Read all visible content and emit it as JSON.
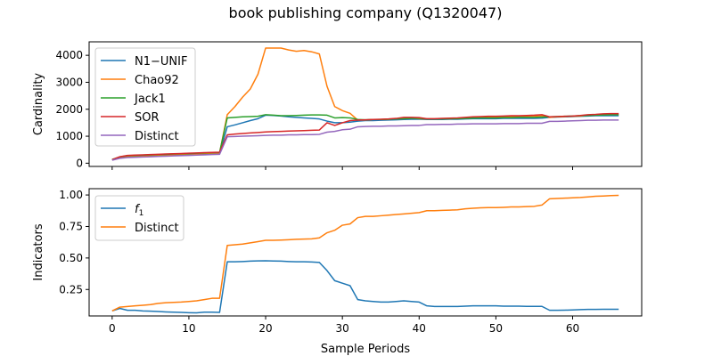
{
  "title": "book publishing company (Q1320047)",
  "chart_data": [
    {
      "type": "line",
      "panel": "top",
      "xlabel": "",
      "ylabel": "Cardinality",
      "xlim": [
        -3,
        69
      ],
      "ylim": [
        -120,
        4500
      ],
      "xticks": [
        0,
        10,
        20,
        30,
        40,
        50,
        60
      ],
      "yticks": [
        0,
        1000,
        2000,
        3000,
        4000
      ],
      "ytick_labels": [
        "0",
        "1000",
        "2000",
        "3000",
        "4000"
      ],
      "legend": "top-left",
      "x": [
        0,
        1,
        2,
        3,
        4,
        5,
        6,
        7,
        8,
        9,
        10,
        11,
        12,
        13,
        14,
        15,
        16,
        17,
        18,
        19,
        20,
        21,
        22,
        23,
        24,
        25,
        26,
        27,
        28,
        29,
        30,
        31,
        32,
        33,
        34,
        35,
        36,
        37,
        38,
        39,
        40,
        41,
        42,
        43,
        44,
        45,
        46,
        47,
        48,
        49,
        50,
        51,
        52,
        53,
        54,
        55,
        56,
        57,
        58,
        59,
        60,
        61,
        62,
        63,
        64,
        65,
        66
      ],
      "series": [
        {
          "name": "N1−UNIF",
          "color": "#1f77b4",
          "values": [
            130,
            200,
            240,
            250,
            260,
            270,
            280,
            290,
            300,
            310,
            320,
            330,
            340,
            350,
            360,
            1350,
            1420,
            1500,
            1580,
            1650,
            1780,
            1770,
            1750,
            1720,
            1700,
            1680,
            1660,
            1640,
            1560,
            1500,
            1500,
            1520,
            1560,
            1580,
            1580,
            1590,
            1600,
            1610,
            1620,
            1630,
            1630,
            1620,
            1620,
            1620,
            1630,
            1630,
            1640,
            1650,
            1650,
            1650,
            1650,
            1660,
            1660,
            1660,
            1660,
            1660,
            1670,
            1700,
            1710,
            1720,
            1730,
            1740,
            1750,
            1760,
            1760,
            1760,
            1760
          ]
        },
        {
          "name": "Chao92",
          "color": "#ff7f0e",
          "values": [
            120,
            220,
            260,
            270,
            280,
            290,
            300,
            310,
            320,
            330,
            340,
            350,
            360,
            370,
            380,
            1800,
            2100,
            2450,
            2750,
            3300,
            4270,
            4270,
            4270,
            4200,
            4150,
            4180,
            4130,
            4050,
            2850,
            2100,
            1950,
            1850,
            1600,
            1600,
            1620,
            1620,
            1630,
            1650,
            1650,
            1680,
            1650,
            1640,
            1640,
            1650,
            1650,
            1660,
            1680,
            1700,
            1700,
            1710,
            1710,
            1720,
            1720,
            1730,
            1740,
            1750,
            1760,
            1700,
            1720,
            1730,
            1740,
            1750,
            1780,
            1800,
            1810,
            1810,
            1810
          ]
        },
        {
          "name": "Jack1",
          "color": "#2ca02c",
          "values": [
            140,
            230,
            280,
            290,
            300,
            310,
            320,
            330,
            340,
            350,
            360,
            370,
            380,
            390,
            400,
            1680,
            1700,
            1720,
            1730,
            1740,
            1800,
            1780,
            1760,
            1760,
            1770,
            1780,
            1790,
            1790,
            1780,
            1680,
            1690,
            1680,
            1620,
            1610,
            1620,
            1620,
            1630,
            1640,
            1650,
            1660,
            1660,
            1640,
            1640,
            1640,
            1650,
            1650,
            1660,
            1670,
            1680,
            1680,
            1680,
            1690,
            1690,
            1700,
            1700,
            1700,
            1710,
            1720,
            1730,
            1740,
            1750,
            1760,
            1770,
            1780,
            1790,
            1800,
            1800
          ]
        },
        {
          "name": "SOR",
          "color": "#d62728",
          "values": [
            130,
            240,
            290,
            300,
            310,
            320,
            330,
            340,
            350,
            360,
            370,
            380,
            390,
            400,
            410,
            1050,
            1080,
            1100,
            1120,
            1140,
            1160,
            1170,
            1180,
            1190,
            1200,
            1210,
            1220,
            1230,
            1500,
            1400,
            1500,
            1580,
            1600,
            1610,
            1620,
            1630,
            1640,
            1660,
            1700,
            1700,
            1690,
            1650,
            1650,
            1660,
            1670,
            1680,
            1700,
            1720,
            1730,
            1740,
            1740,
            1750,
            1760,
            1760,
            1770,
            1780,
            1800,
            1720,
            1730,
            1740,
            1750,
            1770,
            1800,
            1810,
            1830,
            1840,
            1840
          ]
        },
        {
          "name": "Distinct",
          "color": "#9467bd",
          "values": [
            110,
            180,
            210,
            220,
            230,
            240,
            250,
            260,
            270,
            280,
            290,
            300,
            310,
            320,
            330,
            980,
            990,
            1000,
            1010,
            1020,
            1030,
            1040,
            1040,
            1050,
            1050,
            1060,
            1060,
            1070,
            1150,
            1180,
            1240,
            1260,
            1350,
            1360,
            1370,
            1370,
            1380,
            1380,
            1390,
            1400,
            1400,
            1430,
            1430,
            1440,
            1440,
            1450,
            1450,
            1460,
            1460,
            1460,
            1460,
            1470,
            1470,
            1470,
            1480,
            1480,
            1480,
            1550,
            1550,
            1560,
            1570,
            1580,
            1590,
            1590,
            1600,
            1600,
            1600
          ]
        }
      ]
    },
    {
      "type": "line",
      "panel": "bottom",
      "xlabel": "Sample Periods",
      "ylabel": "Indicators",
      "xlim": [
        -3,
        69
      ],
      "ylim": [
        0.04,
        1.05
      ],
      "xticks": [
        0,
        10,
        20,
        30,
        40,
        50,
        60
      ],
      "yticks": [
        0.25,
        0.5,
        0.75,
        1.0
      ],
      "ytick_labels": [
        "0.25",
        "0.50",
        "0.75",
        "1.00"
      ],
      "legend": "top-left",
      "x": [
        0,
        1,
        2,
        3,
        4,
        5,
        6,
        7,
        8,
        9,
        10,
        11,
        12,
        13,
        14,
        15,
        16,
        17,
        18,
        19,
        20,
        21,
        22,
        23,
        24,
        25,
        26,
        27,
        28,
        29,
        30,
        31,
        32,
        33,
        34,
        35,
        36,
        37,
        38,
        39,
        40,
        41,
        42,
        43,
        44,
        45,
        46,
        47,
        48,
        49,
        50,
        51,
        52,
        53,
        54,
        55,
        56,
        57,
        58,
        59,
        60,
        61,
        62,
        63,
        64,
        65,
        66
      ],
      "series": [
        {
          "name": "f",
          "name_sub": "1",
          "color": "#1f77b4",
          "values": [
            0.08,
            0.1,
            0.085,
            0.085,
            0.08,
            0.078,
            0.075,
            0.072,
            0.07,
            0.068,
            0.066,
            0.065,
            0.07,
            0.07,
            0.068,
            0.47,
            0.47,
            0.472,
            0.475,
            0.477,
            0.478,
            0.476,
            0.475,
            0.472,
            0.47,
            0.47,
            0.468,
            0.465,
            0.4,
            0.32,
            0.3,
            0.28,
            0.17,
            0.16,
            0.155,
            0.15,
            0.15,
            0.155,
            0.16,
            0.155,
            0.15,
            0.12,
            0.115,
            0.115,
            0.115,
            0.115,
            0.118,
            0.12,
            0.12,
            0.12,
            0.12,
            0.118,
            0.118,
            0.118,
            0.116,
            0.116,
            0.116,
            0.085,
            0.085,
            0.086,
            0.088,
            0.09,
            0.092,
            0.092,
            0.093,
            0.093,
            0.093
          ]
        },
        {
          "name": "Distinct",
          "color": "#ff7f0e",
          "values": [
            0.08,
            0.11,
            0.115,
            0.12,
            0.125,
            0.13,
            0.14,
            0.145,
            0.148,
            0.15,
            0.155,
            0.16,
            0.17,
            0.18,
            0.18,
            0.6,
            0.605,
            0.61,
            0.62,
            0.63,
            0.64,
            0.64,
            0.642,
            0.645,
            0.648,
            0.65,
            0.652,
            0.66,
            0.7,
            0.72,
            0.76,
            0.77,
            0.82,
            0.83,
            0.83,
            0.835,
            0.84,
            0.845,
            0.85,
            0.855,
            0.86,
            0.875,
            0.875,
            0.878,
            0.88,
            0.882,
            0.89,
            0.895,
            0.898,
            0.9,
            0.9,
            0.902,
            0.905,
            0.905,
            0.908,
            0.91,
            0.92,
            0.97,
            0.972,
            0.975,
            0.978,
            0.98,
            0.985,
            0.99,
            0.992,
            0.995,
            0.997
          ]
        }
      ]
    }
  ]
}
